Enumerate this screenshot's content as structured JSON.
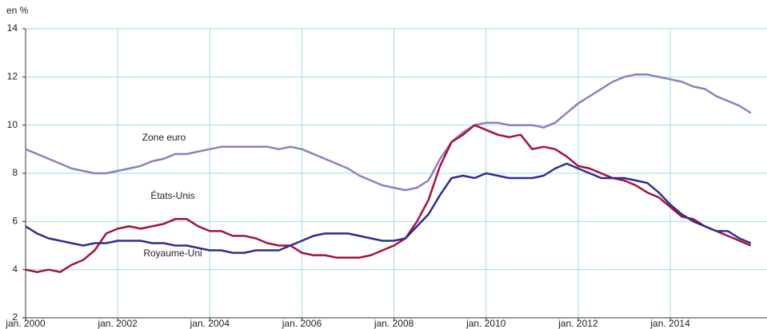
{
  "chart_data": {
    "type": "line",
    "ylabel": "en %",
    "x": [
      2000,
      2000.25,
      2000.5,
      2000.75,
      2001,
      2001.25,
      2001.5,
      2001.75,
      2002,
      2002.25,
      2002.5,
      2002.75,
      2003,
      2003.25,
      2003.5,
      2003.75,
      2004,
      2004.25,
      2004.5,
      2004.75,
      2005,
      2005.25,
      2005.5,
      2005.75,
      2006,
      2006.25,
      2006.5,
      2006.75,
      2007,
      2007.25,
      2007.5,
      2007.75,
      2008,
      2008.25,
      2008.5,
      2008.75,
      2009,
      2009.25,
      2009.5,
      2009.75,
      2010,
      2010.25,
      2010.5,
      2010.75,
      2011,
      2011.25,
      2011.5,
      2011.75,
      2012,
      2012.25,
      2012.5,
      2012.75,
      2013,
      2013.25,
      2013.5,
      2013.75,
      2014,
      2014.25,
      2014.5,
      2014.75,
      2015,
      2015.25,
      2015.5,
      2015.75
    ],
    "series": [
      {
        "name": "Zone euro",
        "color": "#8a80c2",
        "values": [
          9.0,
          8.8,
          8.6,
          8.4,
          8.2,
          8.1,
          8.0,
          8.0,
          8.1,
          8.2,
          8.3,
          8.5,
          8.6,
          8.8,
          8.8,
          8.9,
          9.0,
          9.1,
          9.1,
          9.1,
          9.1,
          9.1,
          9.0,
          9.1,
          9.0,
          8.8,
          8.6,
          8.4,
          8.2,
          7.9,
          7.7,
          7.5,
          7.4,
          7.3,
          7.4,
          7.7,
          8.6,
          9.3,
          9.7,
          10.0,
          10.1,
          10.1,
          10.0,
          10.0,
          10.0,
          9.9,
          10.1,
          10.5,
          10.9,
          11.2,
          11.5,
          11.8,
          12.0,
          12.1,
          12.1,
          12.0,
          11.9,
          11.8,
          11.6,
          11.5,
          11.2,
          11.0,
          10.8,
          10.5
        ]
      },
      {
        "name": "États-Unis",
        "color": "#a3123d",
        "values": [
          4.0,
          3.9,
          4.0,
          3.9,
          4.2,
          4.4,
          4.8,
          5.5,
          5.7,
          5.8,
          5.7,
          5.8,
          5.9,
          6.1,
          6.1,
          5.8,
          5.6,
          5.6,
          5.4,
          5.4,
          5.3,
          5.1,
          5.0,
          5.0,
          4.7,
          4.6,
          4.6,
          4.5,
          4.5,
          4.5,
          4.6,
          4.8,
          5.0,
          5.3,
          6.0,
          6.9,
          8.3,
          9.3,
          9.6,
          10.0,
          9.8,
          9.6,
          9.5,
          9.6,
          9.0,
          9.1,
          9.0,
          8.7,
          8.3,
          8.2,
          8.0,
          7.8,
          7.7,
          7.5,
          7.2,
          7.0,
          6.6,
          6.2,
          6.1,
          5.8,
          5.6,
          5.4,
          5.2,
          5.0
        ]
      },
      {
        "name": "Royaume-Uni",
        "color": "#2d2e8f",
        "values": [
          5.8,
          5.5,
          5.3,
          5.2,
          5.1,
          5.0,
          5.1,
          5.1,
          5.2,
          5.2,
          5.2,
          5.1,
          5.1,
          5.0,
          5.0,
          4.9,
          4.8,
          4.8,
          4.7,
          4.7,
          4.8,
          4.8,
          4.8,
          5.0,
          5.2,
          5.4,
          5.5,
          5.5,
          5.5,
          5.4,
          5.3,
          5.2,
          5.2,
          5.3,
          5.8,
          6.3,
          7.1,
          7.8,
          7.9,
          7.8,
          8.0,
          7.9,
          7.8,
          7.8,
          7.8,
          7.9,
          8.2,
          8.4,
          8.2,
          8.0,
          7.8,
          7.8,
          7.8,
          7.7,
          7.6,
          7.2,
          6.7,
          6.3,
          6.0,
          5.8,
          5.6,
          5.6,
          5.3,
          5.1
        ]
      }
    ],
    "xlim": [
      2000,
      2016.1
    ],
    "xticks": [
      {
        "value": 2000,
        "label": "jan. 2000"
      },
      {
        "value": 2002,
        "label": "jan. 2002"
      },
      {
        "value": 2004,
        "label": "jan. 2004"
      },
      {
        "value": 2006,
        "label": "jan. 2006"
      },
      {
        "value": 2008,
        "label": "jan. 2008"
      },
      {
        "value": 2010,
        "label": "jan. 2010"
      },
      {
        "value": 2012,
        "label": "jan. 2012"
      },
      {
        "value": 2014,
        "label": "jan. 2014"
      }
    ],
    "ylim": [
      2,
      14
    ],
    "yticks": [
      2,
      4,
      6,
      8,
      10,
      12,
      14
    ],
    "grid": true
  }
}
